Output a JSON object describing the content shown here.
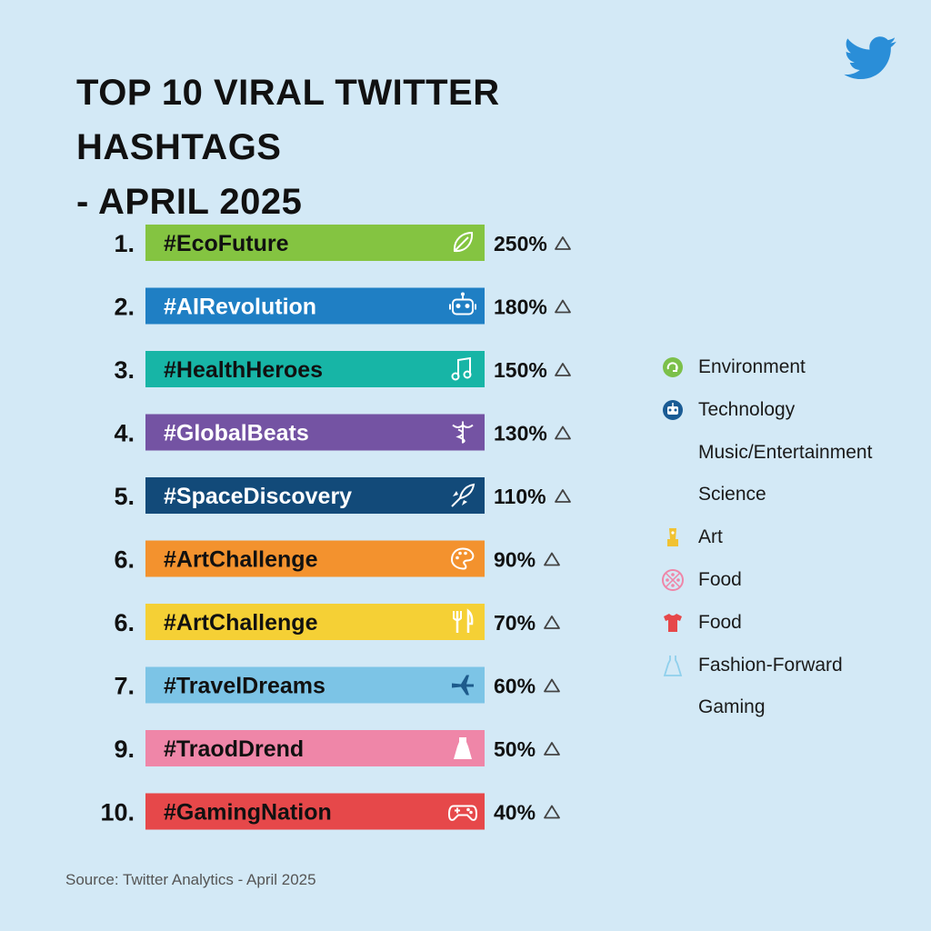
{
  "header": {
    "title_line1": "TOP 10 VIRAL TWITTER HASHTAGS",
    "title_line2": "- APRIL 2025"
  },
  "chart_data": {
    "type": "bar",
    "title": "TOP 10 VIRAL TWITTER HASHTAGS - APRIL 2025",
    "xlabel": "",
    "ylabel": "",
    "orientation": "horizontal",
    "ranks": [
      "1.",
      "2.",
      "3.",
      "4.",
      "5.",
      "6.",
      "6.",
      "7.",
      "9.",
      "10."
    ],
    "categories": [
      "#EcoFuture",
      "#AIRevolution",
      "#HealthHeroes",
      "#GlobalBeats",
      "#SpaceDiscovery",
      "#ArtChallenge",
      "#ArtChallenge",
      "#TravelDreams",
      "#TraodDrend",
      "#GamingNation"
    ],
    "value_labels": [
      "250%",
      "180%",
      "150%",
      "130%",
      "110%",
      "90%",
      "70%",
      "60%",
      "50%",
      "40%"
    ],
    "values": [
      250,
      180,
      150,
      130,
      110,
      90,
      70,
      60,
      50,
      40
    ],
    "colors": [
      "#84c441",
      "#1f7fc4",
      "#17b5a6",
      "#7453a3",
      "#124a79",
      "#f3922e",
      "#f5d035",
      "#7cc4e6",
      "#ef86a8",
      "#e6484a"
    ],
    "icons": [
      "leaf-icon",
      "robot-icon",
      "music-note-icon",
      "caduceus-icon",
      "rocket-icon",
      "palette-icon",
      "fork-knife-icon",
      "airplane-icon",
      "dress-icon",
      "gamepad-icon"
    ],
    "trend_icon": "up-triangle-icon",
    "legend_position": "right"
  },
  "legend": [
    {
      "label": "Environment",
      "icon": "recycle-icon",
      "color": "#7cc04a"
    },
    {
      "label": "Technology",
      "icon": "robot-icon",
      "color": "#1a5b94"
    },
    {
      "label": "Music/Entertainment",
      "icon": "",
      "color": ""
    },
    {
      "label": "Science",
      "icon": "",
      "color": ""
    },
    {
      "label": "Art",
      "icon": "trophy-icon",
      "color": "#f1c232"
    },
    {
      "label": "Food",
      "icon": "pizza-icon",
      "color": "#ef86a8"
    },
    {
      "label": "Food",
      "icon": "shirt-icon",
      "color": "#e6484a"
    },
    {
      "label": "Fashion-Forward",
      "icon": "dress-icon",
      "color": "#8fd0ec"
    },
    {
      "label": "Gaming",
      "icon": "",
      "color": ""
    }
  ],
  "footer": {
    "source": "Source: Twitter Analytics - April 2025"
  },
  "brand": {
    "logo_icon": "twitter-bird-icon",
    "accent": "#1da1f2"
  }
}
